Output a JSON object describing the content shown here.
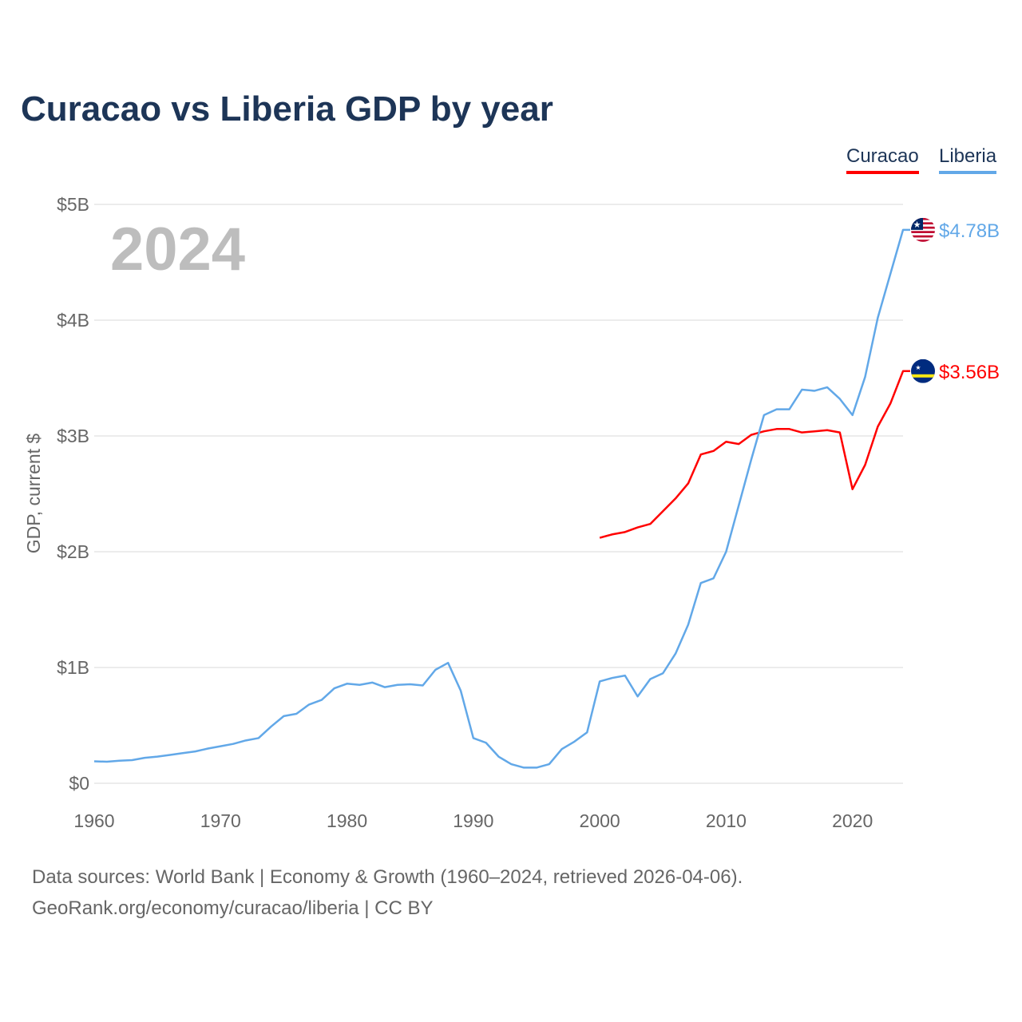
{
  "title": "Curacao vs Liberia GDP by year",
  "sources": {
    "line1": "Data sources: World Bank | Economy & Growth (1960–2024, retrieved 2026-04-06).",
    "line2": "GeoRank.org/economy/curacao/liberia | CC BY"
  },
  "chart_data": {
    "type": "line",
    "title": "Curacao vs Liberia GDP by year",
    "ylabel": "GDP, current $",
    "xlabel": "",
    "year_label": "2024",
    "xlim": [
      1960,
      2024
    ],
    "ylim": [
      0,
      5
    ],
    "x_ticks": [
      1960,
      1970,
      1980,
      1990,
      2000,
      2010,
      2020
    ],
    "y_ticks": [
      {
        "v": 0,
        "label": "$0"
      },
      {
        "v": 1,
        "label": "$1B"
      },
      {
        "v": 2,
        "label": "$2B"
      },
      {
        "v": 3,
        "label": "$3B"
      },
      {
        "v": 4,
        "label": "$4B"
      },
      {
        "v": 5,
        "label": "$5B"
      }
    ],
    "grid": true,
    "legend_position": "top-right",
    "series": [
      {
        "name": "Curacao",
        "color": "#ff0000",
        "end_label": "$3.56B",
        "flag": "curacao-flag",
        "start_year": 2000,
        "values": [
          2.12,
          2.15,
          2.17,
          2.21,
          2.24,
          2.35,
          2.46,
          2.59,
          2.84,
          2.87,
          2.95,
          2.93,
          3.01,
          3.04,
          3.06,
          3.06,
          3.03,
          3.04,
          3.05,
          3.03,
          2.54,
          2.75,
          3.08,
          3.28,
          3.56
        ]
      },
      {
        "name": "Liberia",
        "color": "#62a8e8",
        "end_label": "$4.78B",
        "flag": "liberia-flag",
        "start_year": 1960,
        "values": [
          0.19,
          0.186,
          0.195,
          0.2,
          0.22,
          0.23,
          0.245,
          0.26,
          0.275,
          0.3,
          0.32,
          0.34,
          0.37,
          0.39,
          0.49,
          0.58,
          0.6,
          0.68,
          0.72,
          0.82,
          0.86,
          0.85,
          0.87,
          0.83,
          0.85,
          0.855,
          0.845,
          0.98,
          1.04,
          0.8,
          0.39,
          0.35,
          0.23,
          0.165,
          0.135,
          0.135,
          0.165,
          0.295,
          0.36,
          0.44,
          0.88,
          0.91,
          0.93,
          0.75,
          0.9,
          0.95,
          1.12,
          1.37,
          1.73,
          1.77,
          2.0,
          2.4,
          2.8,
          3.18,
          3.23,
          3.23,
          3.4,
          3.39,
          3.42,
          3.32,
          3.18,
          3.51,
          4.02,
          4.4,
          4.78
        ]
      }
    ]
  }
}
